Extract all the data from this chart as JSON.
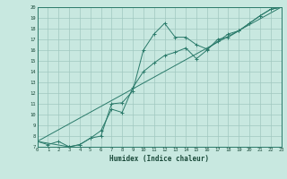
{
  "title": "",
  "xlabel": "Humidex (Indice chaleur)",
  "bg_color": "#c8e8e0",
  "line_color": "#2a7a6a",
  "grid_color": "#a0c8c0",
  "xlim": [
    0,
    23
  ],
  "ylim": [
    7,
    20
  ],
  "xticks": [
    0,
    1,
    2,
    3,
    4,
    5,
    6,
    7,
    8,
    9,
    10,
    11,
    12,
    13,
    14,
    15,
    16,
    17,
    18,
    19,
    20,
    21,
    22,
    23
  ],
  "yticks": [
    7,
    8,
    9,
    10,
    11,
    12,
    13,
    14,
    15,
    16,
    17,
    18,
    19,
    20
  ],
  "line1_x": [
    0,
    1,
    2,
    3,
    4,
    5,
    6,
    7,
    8,
    9,
    10,
    11,
    12,
    13,
    14,
    15,
    16,
    17,
    18,
    19,
    20,
    21,
    22,
    23
  ],
  "line1_y": [
    7.5,
    7.2,
    7.5,
    7.0,
    7.2,
    7.8,
    8.0,
    11.0,
    11.1,
    12.2,
    16.0,
    17.5,
    18.5,
    17.2,
    17.2,
    16.5,
    16.1,
    16.8,
    17.5,
    17.8,
    18.5,
    19.2,
    19.8,
    20.0
  ],
  "line2_x": [
    0,
    3,
    4,
    5,
    6,
    7,
    8,
    9,
    10,
    11,
    12,
    13,
    14,
    15,
    16,
    17,
    18,
    19,
    20,
    21,
    22,
    23
  ],
  "line2_y": [
    7.5,
    7.0,
    7.2,
    7.8,
    8.5,
    10.5,
    10.2,
    12.5,
    14.0,
    14.8,
    15.5,
    15.8,
    16.2,
    15.2,
    16.0,
    17.0,
    17.2,
    17.8,
    18.5,
    19.2,
    19.8,
    20.0
  ],
  "line3_x": [
    0,
    23
  ],
  "line3_y": [
    7.5,
    20.0
  ]
}
